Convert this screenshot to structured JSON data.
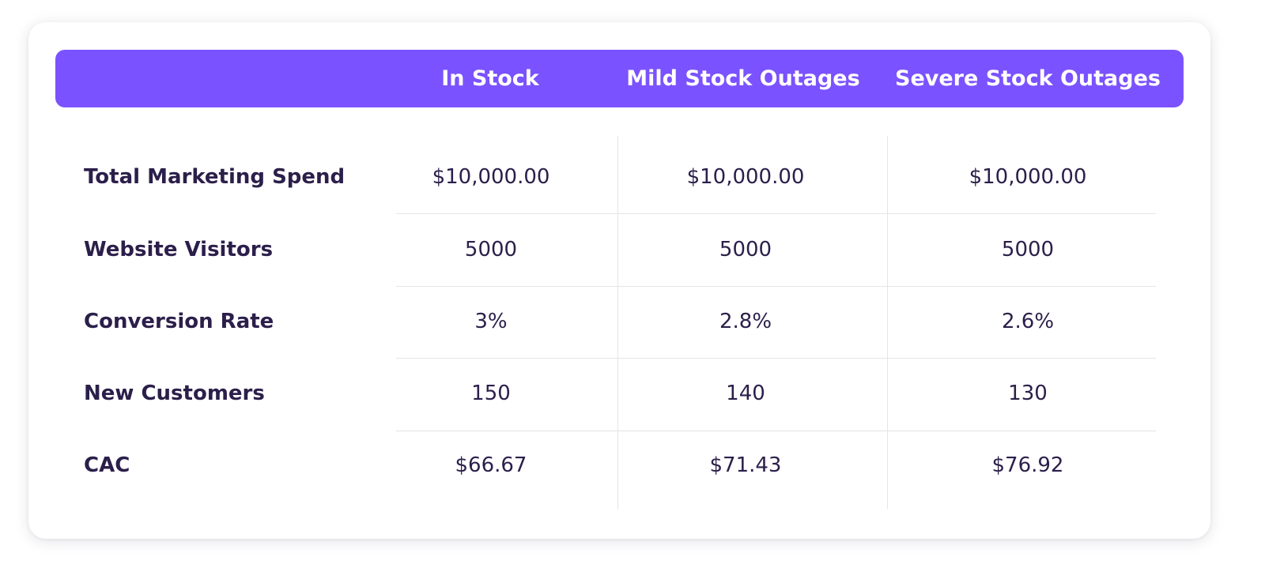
{
  "chart_data": {
    "type": "table",
    "columns": [
      "",
      "In Stock",
      "Mild Stock Outages",
      "Severe Stock Outages"
    ],
    "rows": [
      {
        "label": "Total Marketing Spend",
        "values": [
          "$10,000.00",
          "$10,000.00",
          "$10,000.00"
        ]
      },
      {
        "label": "Website Visitors",
        "values": [
          "5000",
          "5000",
          "5000"
        ]
      },
      {
        "label": "Conversion Rate",
        "values": [
          "3%",
          "2.8%",
          "2.6%"
        ]
      },
      {
        "label": "New Customers",
        "values": [
          "150",
          "140",
          "130"
        ]
      },
      {
        "label": "CAC",
        "values": [
          "$66.67",
          "$71.43",
          "$76.92"
        ]
      }
    ]
  },
  "colors": {
    "header_background": "#7b52ff",
    "header_text": "#ffffff",
    "body_text": "#2b1f4a",
    "grid_lines": "#e4e4ea"
  }
}
